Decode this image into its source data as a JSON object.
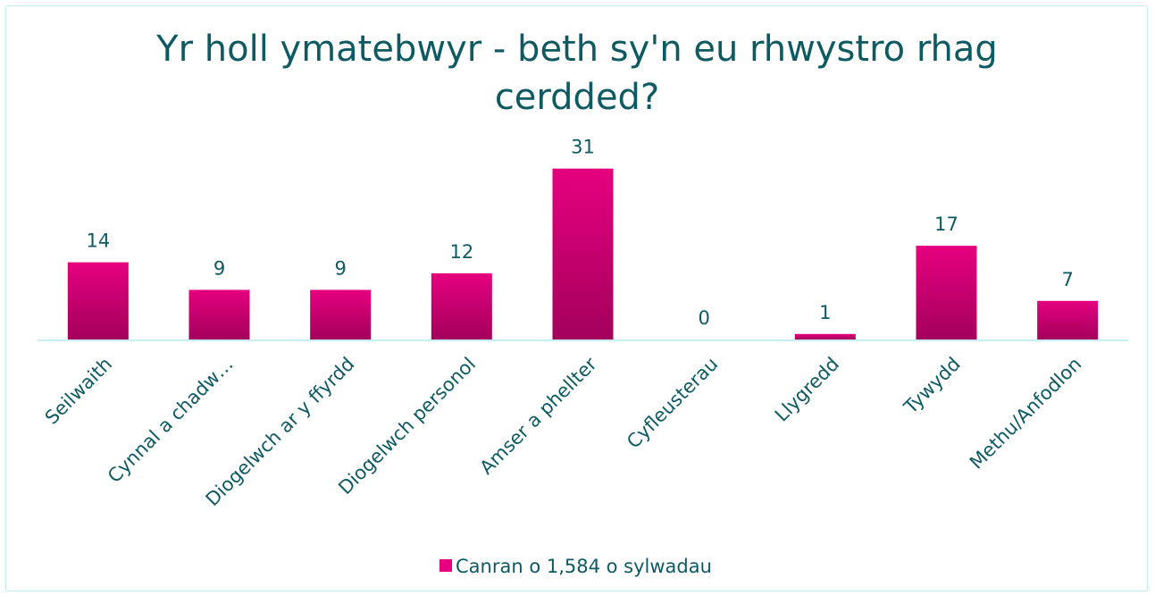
{
  "chart_data": {
    "type": "bar",
    "title": "Yr holl ymatebwyr - beth sy'n eu rhwystro rhag cerdded?",
    "categories": [
      "Seilwaith",
      "Cynnal a chadw…",
      "Diogelwch ar y ffyrdd",
      "Diogelwch personol",
      "Amser a phellter",
      "Cyfleusterau",
      "Llygredd",
      "Tywydd",
      "Methu/Anfodlon"
    ],
    "series": [
      {
        "name": "Canran o 1,584 o sylwadau",
        "color": "#e6007e",
        "values": [
          14,
          9,
          9,
          12,
          31,
          0,
          1,
          17,
          7
        ]
      }
    ],
    "ylim": [
      0,
      35
    ],
    "legend": "bottom"
  }
}
